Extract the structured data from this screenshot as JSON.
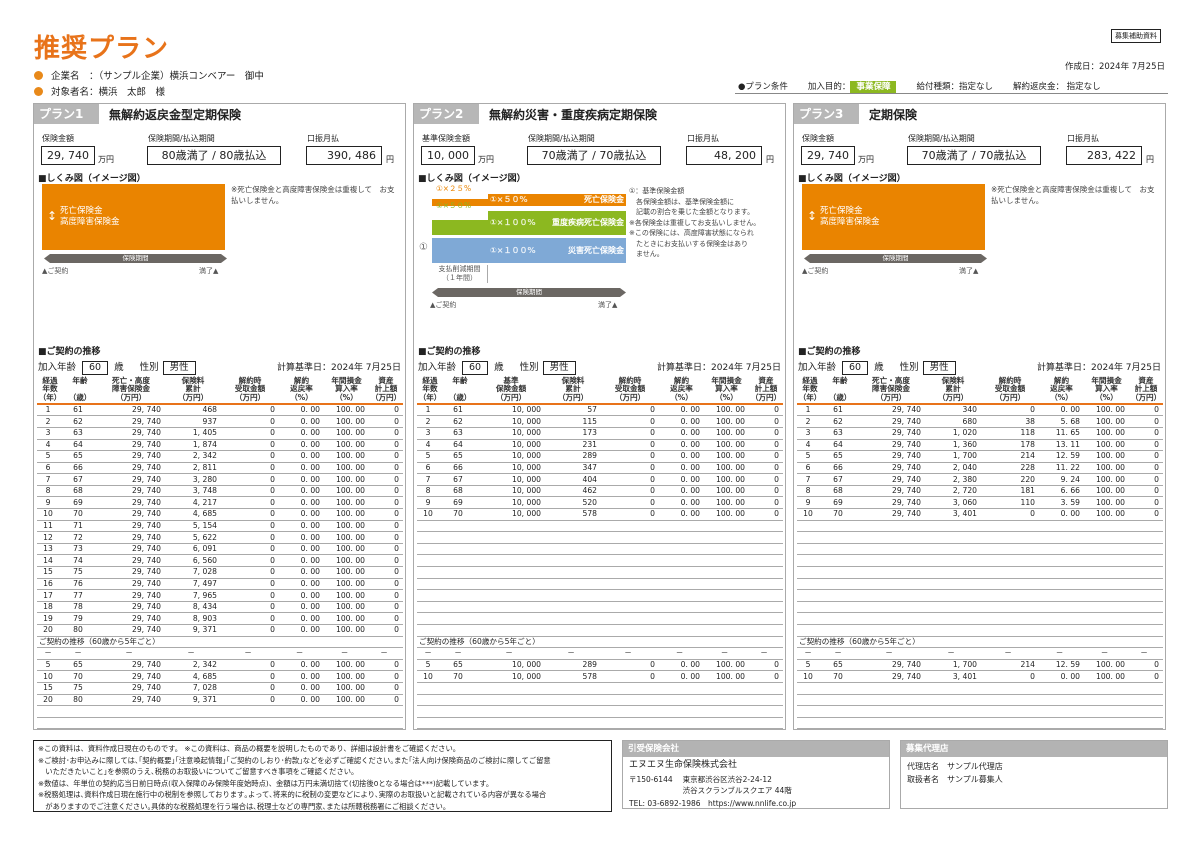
{
  "header": {
    "title": "推奨プラン",
    "badge": "募集補助資料",
    "created": "作成日：2024年 7月25日",
    "company_label": "企業名　：",
    "company": "（サンプル企業）横浜コンベアー　御中",
    "person_label": "対象者名：",
    "person": "横浜　太郎　様"
  },
  "conditions": {
    "label": "●プラン条件",
    "purpose_label": "加入目的：",
    "purpose": "事業保障",
    "benefit": "給付種類：指定なし",
    "surrender": "解約返戻金： 指定なし"
  },
  "colors": {
    "accent": "#e8731a",
    "orange": "#ea8400",
    "green": "#8cb820",
    "blue": "#7fa9d6",
    "gray": "#b7b7b7"
  },
  "common": {
    "diagram_title": "■しくみ図（イメージ図）",
    "history_title": "■ご契約の推移",
    "age_label": "加入年齢",
    "age": "60",
    "age_unit": "歳",
    "sex_label": "性別",
    "sex": "男性",
    "calc_date": "計算基準日：2024年 7月25日",
    "premium_label": "口振月払",
    "yen": "円",
    "man_yen": "万円",
    "period_label": "保険期間",
    "start": "ご契約",
    "end": "満了",
    "five_year_title": "ご契約の推移（60歳から5年ごと）",
    "dash": "－"
  },
  "plans": [
    {
      "label": "プラン1",
      "name": "無解約返戻金型定期保険",
      "amount_label": "保険金額",
      "amount": "29, 740",
      "term_label": "保険期間/払込期間",
      "term": "80歳満了 / 80歳払込",
      "premium": "390, 486",
      "diagram": {
        "box": [
          "死亡保険金",
          "高度障害保険金"
        ],
        "note": "※死亡保険金と高度障害保険金は重複して　お支払いしません。"
      },
      "headers": [
        "経過\n年数\n（年）",
        "年齢\n\n（歳）",
        "死亡・高度\n障害保険金\n（万円）",
        "保険料\n累計\n（万円）",
        "解約時\n受取金額\n（万円）",
        "解約\n返戻率\n（%）",
        "年間損金\n算入率\n（%）",
        "資産\n計上額\n（万円）"
      ],
      "rows": [
        [
          "1",
          "61",
          "29, 740",
          "468",
          "0",
          "0. 00",
          "100. 00",
          "0"
        ],
        [
          "2",
          "62",
          "29, 740",
          "937",
          "0",
          "0. 00",
          "100. 00",
          "0"
        ],
        [
          "3",
          "63",
          "29, 740",
          "1, 405",
          "0",
          "0. 00",
          "100. 00",
          "0"
        ],
        [
          "4",
          "64",
          "29, 740",
          "1, 874",
          "0",
          "0. 00",
          "100. 00",
          "0"
        ],
        [
          "5",
          "65",
          "29, 740",
          "2, 342",
          "0",
          "0. 00",
          "100. 00",
          "0"
        ],
        [
          "6",
          "66",
          "29, 740",
          "2, 811",
          "0",
          "0. 00",
          "100. 00",
          "0"
        ],
        [
          "7",
          "67",
          "29, 740",
          "3, 280",
          "0",
          "0. 00",
          "100. 00",
          "0"
        ],
        [
          "8",
          "68",
          "29, 740",
          "3, 748",
          "0",
          "0. 00",
          "100. 00",
          "0"
        ],
        [
          "9",
          "69",
          "29, 740",
          "4, 217",
          "0",
          "0. 00",
          "100. 00",
          "0"
        ],
        [
          "10",
          "70",
          "29, 740",
          "4, 685",
          "0",
          "0. 00",
          "100. 00",
          "0"
        ],
        [
          "11",
          "71",
          "29, 740",
          "5, 154",
          "0",
          "0. 00",
          "100. 00",
          "0"
        ],
        [
          "12",
          "72",
          "29, 740",
          "5, 622",
          "0",
          "0. 00",
          "100. 00",
          "0"
        ],
        [
          "13",
          "73",
          "29, 740",
          "6, 091",
          "0",
          "0. 00",
          "100. 00",
          "0"
        ],
        [
          "14",
          "74",
          "29, 740",
          "6, 560",
          "0",
          "0. 00",
          "100. 00",
          "0"
        ],
        [
          "15",
          "75",
          "29, 740",
          "7, 028",
          "0",
          "0. 00",
          "100. 00",
          "0"
        ],
        [
          "16",
          "76",
          "29, 740",
          "7, 497",
          "0",
          "0. 00",
          "100. 00",
          "0"
        ],
        [
          "17",
          "77",
          "29, 740",
          "7, 965",
          "0",
          "0. 00",
          "100. 00",
          "0"
        ],
        [
          "18",
          "78",
          "29, 740",
          "8, 434",
          "0",
          "0. 00",
          "100. 00",
          "0"
        ],
        [
          "19",
          "79",
          "29, 740",
          "8, 903",
          "0",
          "0. 00",
          "100. 00",
          "0"
        ],
        [
          "20",
          "80",
          "29, 740",
          "9, 371",
          "0",
          "0. 00",
          "100. 00",
          "0"
        ]
      ],
      "five_year": [
        [
          "5",
          "65",
          "29, 740",
          "2, 342",
          "0",
          "0. 00",
          "100. 00",
          "0"
        ],
        [
          "10",
          "70",
          "29, 740",
          "4, 685",
          "0",
          "0. 00",
          "100. 00",
          "0"
        ],
        [
          "15",
          "75",
          "29, 740",
          "7, 028",
          "0",
          "0. 00",
          "100. 00",
          "0"
        ],
        [
          "20",
          "80",
          "29, 740",
          "9, 371",
          "0",
          "0. 00",
          "100. 00",
          "0"
        ]
      ]
    },
    {
      "label": "プラン2",
      "name": "無解約災害・重度疾病定期保険",
      "amount_label": "基準保険金額",
      "amount": "10, 000",
      "term_label": "保険期間/払込期間",
      "term": "70歳満了 / 70歳払込",
      "premium": "48, 200",
      "diagram": {
        "bars": [
          {
            "small": "①×２５%",
            "big": "①×５０%",
            "name": "死亡保険金"
          },
          {
            "small": "①×５０%",
            "big": "①×１００%",
            "name": "重度疾病死亡保険金"
          },
          {
            "big": "①×１００%",
            "name": "災害死亡保険金"
          }
        ],
        "circle": "①",
        "reduced": "支払削減期間\n（１年間）",
        "notes": [
          "①：基準保険金額",
          "　各保険金額は、基準保険金額に",
          "　記載の割合を乗じた金額となります。",
          "※各保険金は重複してお支払いしません。",
          "※この保険には、高度障害状態になられ",
          "　たときにお支払いする保険金はあり",
          "　ません。"
        ]
      },
      "headers": [
        "経過\n年数\n（年）",
        "年齢\n\n（歳）",
        "基準\n保険金額\n（万円）",
        "保険料\n累計\n（万円）",
        "解約時\n受取金額\n（万円）",
        "解約\n返戻率\n（%）",
        "年間損金\n算入率\n（%）",
        "資産\n計上額\n（万円）"
      ],
      "rows": [
        [
          "1",
          "61",
          "10, 000",
          "57",
          "0",
          "0. 00",
          "100. 00",
          "0"
        ],
        [
          "2",
          "62",
          "10, 000",
          "115",
          "0",
          "0. 00",
          "100. 00",
          "0"
        ],
        [
          "3",
          "63",
          "10, 000",
          "173",
          "0",
          "0. 00",
          "100. 00",
          "0"
        ],
        [
          "4",
          "64",
          "10, 000",
          "231",
          "0",
          "0. 00",
          "100. 00",
          "0"
        ],
        [
          "5",
          "65",
          "10, 000",
          "289",
          "0",
          "0. 00",
          "100. 00",
          "0"
        ],
        [
          "6",
          "66",
          "10, 000",
          "347",
          "0",
          "0. 00",
          "100. 00",
          "0"
        ],
        [
          "7",
          "67",
          "10, 000",
          "404",
          "0",
          "0. 00",
          "100. 00",
          "0"
        ],
        [
          "8",
          "68",
          "10, 000",
          "462",
          "0",
          "0. 00",
          "100. 00",
          "0"
        ],
        [
          "9",
          "69",
          "10, 000",
          "520",
          "0",
          "0. 00",
          "100. 00",
          "0"
        ],
        [
          "10",
          "70",
          "10, 000",
          "578",
          "0",
          "0. 00",
          "100. 00",
          "0"
        ]
      ],
      "five_year": [
        [
          "5",
          "65",
          "10, 000",
          "289",
          "0",
          "0. 00",
          "100. 00",
          "0"
        ],
        [
          "10",
          "70",
          "10, 000",
          "578",
          "0",
          "0. 00",
          "100. 00",
          "0"
        ]
      ]
    },
    {
      "label": "プラン3",
      "name": "定期保険",
      "amount_label": "保険金額",
      "amount": "29, 740",
      "term_label": "保険期間/払込期間",
      "term": "70歳満了 / 70歳払込",
      "premium": "283, 422",
      "diagram": {
        "box": [
          "死亡保険金",
          "高度障害保険金"
        ],
        "note": "※死亡保険金と高度障害保険金は重複して　お支払いしません。"
      },
      "headers": [
        "経過\n年数\n（年）",
        "年齢\n\n（歳）",
        "死亡・高度\n障害保険金\n（万円）",
        "保険料\n累計\n（万円）",
        "解約時\n受取金額\n（万円）",
        "解約\n返戻率\n（%）",
        "年間損金\n算入率\n（%）",
        "資産\n計上額\n（万円）"
      ],
      "rows": [
        [
          "1",
          "61",
          "29, 740",
          "340",
          "0",
          "0. 00",
          "100. 00",
          "0"
        ],
        [
          "2",
          "62",
          "29, 740",
          "680",
          "38",
          "5. 68",
          "100. 00",
          "0"
        ],
        [
          "3",
          "63",
          "29, 740",
          "1, 020",
          "118",
          "11. 65",
          "100. 00",
          "0"
        ],
        [
          "4",
          "64",
          "29, 740",
          "1, 360",
          "178",
          "13. 11",
          "100. 00",
          "0"
        ],
        [
          "5",
          "65",
          "29, 740",
          "1, 700",
          "214",
          "12. 59",
          "100. 00",
          "0"
        ],
        [
          "6",
          "66",
          "29, 740",
          "2, 040",
          "228",
          "11. 22",
          "100. 00",
          "0"
        ],
        [
          "7",
          "67",
          "29, 740",
          "2, 380",
          "220",
          "9. 24",
          "100. 00",
          "0"
        ],
        [
          "8",
          "68",
          "29, 740",
          "2, 720",
          "181",
          "6. 66",
          "100. 00",
          "0"
        ],
        [
          "9",
          "69",
          "29, 740",
          "3, 060",
          "110",
          "3. 59",
          "100. 00",
          "0"
        ],
        [
          "10",
          "70",
          "29, 740",
          "3, 401",
          "0",
          "0. 00",
          "100. 00",
          "0"
        ]
      ],
      "five_year": [
        [
          "5",
          "65",
          "29, 740",
          "1, 700",
          "214",
          "12. 59",
          "100. 00",
          "0"
        ],
        [
          "10",
          "70",
          "29, 740",
          "3, 401",
          "0",
          "0. 00",
          "100. 00",
          "0"
        ]
      ]
    }
  ],
  "footer": {
    "disclaimer": [
      "※この資料は、資料作成日現在のものです。 ※この資料は、商品の概要を説明したものであり、詳細は設計書をご確認ください。",
      "※ご検討･お申込みに際しては､｢契約概要｣｢注意喚起情報｣｢ご契約のしおり･約款｣などを必ずご確認ください｡また｢法人向け保険商品のご検討に際してご留意",
      "　いただきたいこと｣を参照のうえ､税務のお取扱いについてご留意すべき事項をご確認ください｡",
      "※数値は、年単位の契約応当日前日時点(収入保障のみ保険年度始時点)、金額は万円未満切捨て(切捨後0となる場合は***)記載しています。",
      "※税務処理は､資料作成日現在施行中の税制を参照しております｡よって､将来的に税制の変更などにより､実際のお取扱いと記載されている内容が異なる場合",
      "　がありますのでご注意ください｡具体的な税務処理を行う場合は､税理士などの専門家､または所轄税務署にご相談ください｡"
    ],
    "insurer": {
      "title": "引受保険会社",
      "name": "エヌエヌ生命保険株式会社",
      "zip": "〒150-6144",
      "addr1": "東京都渋谷区渋谷2-24-12",
      "addr2": "渋谷スクランブルスクエア 44階",
      "contact": "TEL: 03-6892-1986　https://www.nnlife.co.jp"
    },
    "agency": {
      "title": "募集代理店",
      "agency_line": "代理店名　サンプル代理店",
      "staff_line": "取扱者名　サンプル募集人"
    }
  }
}
